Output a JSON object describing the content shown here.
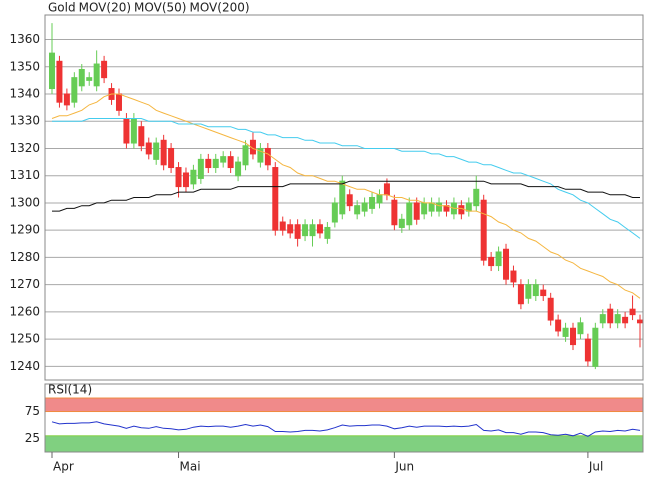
{
  "chart_data": [
    {
      "type": "candlestick",
      "grid": true,
      "ylim": [
        1235,
        1369
      ],
      "yticks": [
        1240,
        1250,
        1260,
        1270,
        1280,
        1290,
        1300,
        1310,
        1320,
        1330,
        1340,
        1350,
        1360
      ],
      "categories": [
        "Apr",
        null,
        null,
        null,
        null,
        null,
        null,
        null,
        null,
        null,
        null,
        null,
        null,
        null,
        null,
        null,
        null,
        "Mai",
        null,
        null,
        null,
        null,
        null,
        null,
        null,
        null,
        null,
        null,
        null,
        null,
        null,
        null,
        null,
        null,
        null,
        null,
        null,
        null,
        null,
        null,
        null,
        null,
        null,
        null,
        null,
        null,
        "Jun",
        null,
        null,
        null,
        null,
        null,
        null,
        null,
        null,
        null,
        null,
        null,
        null,
        null,
        null,
        null,
        null,
        null,
        null,
        null,
        null,
        null,
        null,
        null,
        null,
        null,
        "Jul",
        null,
        null,
        null,
        null,
        null,
        null,
        null
      ],
      "series": [
        {
          "name": "Gold",
          "color": "#ff3333",
          "up_color": "#66cc55",
          "down_color": "#ee3333",
          "open": [
            1342,
            1352,
            1340,
            1337,
            1343,
            1345,
            1343,
            1352,
            1342,
            1340,
            1331,
            1322,
            1328,
            1322,
            1316,
            1323,
            1320,
            1313,
            1311,
            1307,
            1309,
            1316,
            1313,
            1315,
            1317,
            1310,
            1314,
            1323,
            1315,
            1320,
            1313,
            1293,
            1292,
            1292,
            1288,
            1288,
            1292,
            1287,
            1293,
            1296,
            1303,
            1296,
            1297,
            1298,
            1300,
            1307,
            1301,
            1291,
            1292,
            1300,
            1296,
            1297,
            1297,
            1299,
            1296,
            1299,
            1297,
            1299,
            1301,
            1280,
            1277,
            1283,
            1275,
            1270,
            1265,
            1266,
            1268,
            1265,
            1257,
            1251,
            1254,
            1252,
            1250,
            1240,
            1256,
            1261,
            1256,
            1258,
            1261,
            1257
          ],
          "high": [
            1366,
            1354,
            1342,
            1348,
            1351,
            1348,
            1356,
            1354,
            1344,
            1342,
            1333,
            1333,
            1330,
            1324,
            1324,
            1325,
            1322,
            1315,
            1313,
            1314,
            1318,
            1318,
            1318,
            1319,
            1319,
            1317,
            1323,
            1326,
            1322,
            1322,
            1315,
            1295,
            1294,
            1294,
            1294,
            1294,
            1294,
            1293,
            1302,
            1310,
            1305,
            1301,
            1302,
            1304,
            1305,
            1309,
            1303,
            1296,
            1302,
            1302,
            1302,
            1302,
            1302,
            1301,
            1302,
            1301,
            1302,
            1310,
            1303,
            1282,
            1284,
            1285,
            1277,
            1272,
            1272,
            1272,
            1270,
            1267,
            1259,
            1256,
            1256,
            1258,
            1252,
            1256,
            1261,
            1263,
            1261,
            1260,
            1266,
            1259
          ],
          "low": [
            1340,
            1335,
            1334,
            1335,
            1341,
            1343,
            1341,
            1344,
            1336,
            1332,
            1320,
            1320,
            1319,
            1316,
            1314,
            1312,
            1311,
            1302,
            1304,
            1305,
            1307,
            1311,
            1311,
            1313,
            1311,
            1308,
            1312,
            1316,
            1313,
            1312,
            1288,
            1288,
            1287,
            1284,
            1286,
            1284,
            1287,
            1285,
            1291,
            1294,
            1297,
            1294,
            1295,
            1296,
            1298,
            1301,
            1290,
            1289,
            1290,
            1292,
            1294,
            1295,
            1295,
            1295,
            1294,
            1294,
            1295,
            1297,
            1277,
            1275,
            1275,
            1270,
            1269,
            1261,
            1263,
            1264,
            1264,
            1255,
            1251,
            1249,
            1246,
            1250,
            1240,
            1239,
            1254,
            1254,
            1254,
            1254,
            1257,
            1247
          ],
          "close": [
            1355,
            1337,
            1336,
            1346,
            1349,
            1346,
            1351,
            1346,
            1338,
            1334,
            1322,
            1331,
            1321,
            1318,
            1322,
            1314,
            1313,
            1306,
            1306,
            1312,
            1316,
            1313,
            1316,
            1317,
            1313,
            1315,
            1321,
            1318,
            1320,
            1314,
            1290,
            1290,
            1289,
            1287,
            1292,
            1292,
            1289,
            1291,
            1300,
            1308,
            1299,
            1299,
            1300,
            1302,
            1303,
            1303,
            1292,
            1294,
            1300,
            1294,
            1300,
            1300,
            1300,
            1297,
            1300,
            1296,
            1300,
            1305,
            1279,
            1277,
            1282,
            1272,
            1271,
            1263,
            1270,
            1270,
            1266,
            1257,
            1253,
            1254,
            1248,
            1256,
            1242,
            1254,
            1259,
            1256,
            1259,
            1256,
            1259,
            1256
          ]
        },
        {
          "name": "MOV(20)",
          "type": "line",
          "color": "#f5b640",
          "values": [
            1331,
            1332,
            1332,
            1333,
            1334,
            1336,
            1337,
            1339,
            1340,
            1340,
            1339,
            1338,
            1337,
            1336,
            1334,
            1333,
            1332,
            1331,
            1330,
            1329,
            1328,
            1327,
            1326,
            1325,
            1324,
            1323,
            1322,
            1320,
            1319,
            1318,
            1316,
            1314,
            1313,
            1311,
            1310,
            1310,
            1309,
            1308,
            1308,
            1307,
            1306,
            1305,
            1305,
            1304,
            1303,
            1303,
            1302,
            1302,
            1301,
            1301,
            1300,
            1300,
            1299,
            1299,
            1298,
            1298,
            1297,
            1297,
            1296,
            1295,
            1293,
            1292,
            1290,
            1289,
            1287,
            1286,
            1284,
            1282,
            1281,
            1279,
            1278,
            1276,
            1275,
            1274,
            1273,
            1271,
            1270,
            1268,
            1267,
            1265
          ]
        },
        {
          "name": "MOV(50)",
          "type": "line",
          "color": "#44ccee",
          "values": [
            1330,
            1330,
            1330,
            1330,
            1330,
            1331,
            1331,
            1331,
            1331,
            1331,
            1331,
            1331,
            1331,
            1330,
            1330,
            1330,
            1330,
            1329,
            1329,
            1329,
            1329,
            1328,
            1328,
            1328,
            1328,
            1327,
            1327,
            1326,
            1326,
            1325,
            1325,
            1324,
            1324,
            1324,
            1323,
            1323,
            1322,
            1322,
            1322,
            1321,
            1321,
            1321,
            1320,
            1320,
            1320,
            1320,
            1320,
            1319,
            1319,
            1319,
            1319,
            1318,
            1318,
            1317,
            1317,
            1316,
            1315,
            1315,
            1314,
            1314,
            1313,
            1312,
            1311,
            1311,
            1310,
            1309,
            1308,
            1307,
            1305,
            1304,
            1303,
            1301,
            1300,
            1298,
            1296,
            1294,
            1293,
            1291,
            1289,
            1287
          ]
        },
        {
          "name": "MOV(200)",
          "type": "line",
          "color": "#111111",
          "values": [
            1297,
            1297,
            1298,
            1298,
            1299,
            1299,
            1300,
            1300,
            1301,
            1301,
            1301,
            1302,
            1302,
            1302,
            1303,
            1303,
            1303,
            1304,
            1304,
            1304,
            1305,
            1305,
            1305,
            1305,
            1305,
            1306,
            1306,
            1306,
            1306,
            1306,
            1306,
            1306,
            1307,
            1307,
            1307,
            1307,
            1307,
            1307,
            1307,
            1307,
            1308,
            1308,
            1308,
            1308,
            1308,
            1308,
            1308,
            1308,
            1308,
            1308,
            1308,
            1308,
            1308,
            1308,
            1308,
            1308,
            1308,
            1308,
            1308,
            1307,
            1307,
            1307,
            1307,
            1307,
            1306,
            1306,
            1306,
            1306,
            1306,
            1305,
            1305,
            1305,
            1304,
            1304,
            1304,
            1303,
            1303,
            1303,
            1302,
            1302
          ]
        }
      ]
    },
    {
      "type": "line",
      "ylim": [
        0,
        126
      ],
      "yticks": [
        25,
        75
      ],
      "bands": [
        {
          "from": 75,
          "to": 100,
          "color": "#f08a8a"
        },
        {
          "from": 0,
          "to": 30,
          "color": "#80d080"
        }
      ],
      "series": [
        {
          "name": "RSI(14)",
          "color": "#2233cc",
          "values": [
            56,
            52,
            53,
            53,
            54,
            54,
            56,
            52,
            50,
            48,
            44,
            48,
            45,
            44,
            47,
            44,
            43,
            41,
            42,
            46,
            48,
            47,
            48,
            48,
            46,
            48,
            51,
            48,
            50,
            47,
            38,
            38,
            37,
            38,
            40,
            40,
            39,
            41,
            45,
            50,
            48,
            49,
            49,
            50,
            50,
            48,
            43,
            45,
            48,
            46,
            48,
            48,
            48,
            47,
            48,
            47,
            48,
            51,
            40,
            39,
            41,
            36,
            36,
            33,
            37,
            37,
            36,
            32,
            31,
            33,
            30,
            35,
            29,
            37,
            39,
            38,
            40,
            39,
            42,
            40
          ]
        }
      ]
    }
  ]
}
